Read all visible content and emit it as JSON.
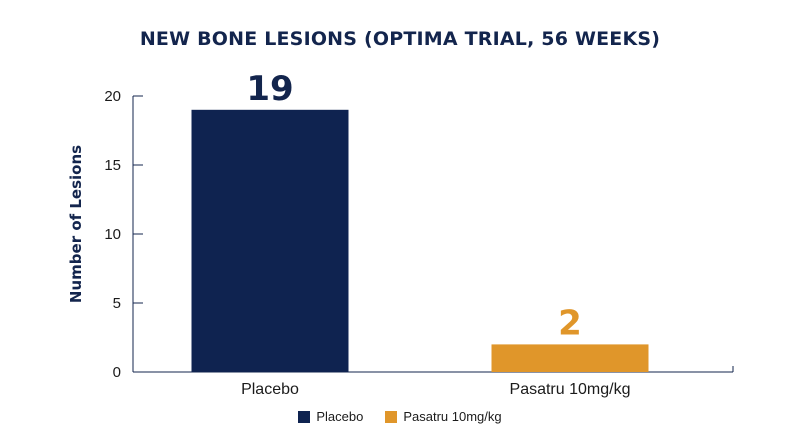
{
  "chart_data": {
    "type": "bar",
    "title": "NEW BONE LESIONS (OPTIMA TRIAL, 56 WEEKS)",
    "ylabel": "Number of Lesions",
    "xlabel": "",
    "categories": [
      "Placebo",
      "Pasatru 10mg/kg"
    ],
    "values": [
      19,
      2
    ],
    "value_labels": [
      "19",
      "2"
    ],
    "colors": [
      "#0f2350",
      "#e0962a"
    ],
    "ylim": [
      0,
      20
    ],
    "yticks": [
      0,
      5,
      10,
      15,
      20
    ],
    "ytick_labels": [
      "0",
      "5",
      "10",
      "15",
      "20"
    ],
    "grid": false,
    "legend": {
      "placement": "bottom-center",
      "entries": [
        {
          "label": "Placebo",
          "color": "#0f2350"
        },
        {
          "label": "Pasatru 10mg/kg",
          "color": "#e0962a"
        }
      ]
    }
  }
}
